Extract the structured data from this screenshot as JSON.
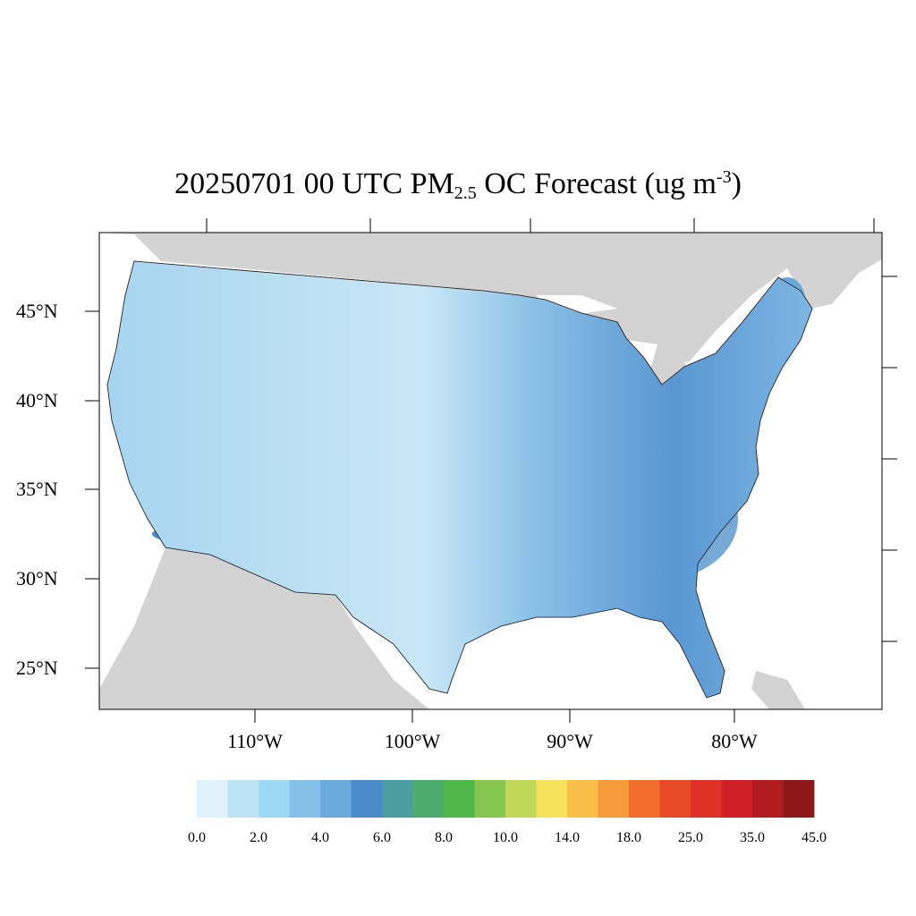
{
  "title": {
    "prefix": "20250701 00 UTC PM",
    "subscript": "2.5",
    "middle": " OC Forecast (ug m",
    "superscript": "-3",
    "suffix": ")"
  },
  "map": {
    "projection": "lambert-conformal",
    "region": "Contiguous United States",
    "boundaries": "counties",
    "land_outside_color": "#d3d3d3",
    "water_color": "#ffffff"
  },
  "lat_labels": [
    "45°N",
    "40°N",
    "35°N",
    "30°N",
    "25°N"
  ],
  "lon_labels": [
    "110°W",
    "100°W",
    "90°W",
    "80°W"
  ],
  "colorbar": {
    "colors": [
      "#dff2fb",
      "#bde4f6",
      "#9dd8f4",
      "#85c0e8",
      "#6aa9dc",
      "#4a8cca",
      "#4b9da0",
      "#4cab6e",
      "#4fb848",
      "#86c54f",
      "#c1d757",
      "#f6e35b",
      "#f8be48",
      "#f69a3a",
      "#f26e2c",
      "#e84b28",
      "#de3227",
      "#d01f27",
      "#b01c20",
      "#8e171a"
    ],
    "labels": [
      "0.0",
      "2.0",
      "4.0",
      "6.0",
      "8.0",
      "10.0",
      "14.0",
      "18.0",
      "25.0",
      "35.0",
      "45.0"
    ]
  }
}
